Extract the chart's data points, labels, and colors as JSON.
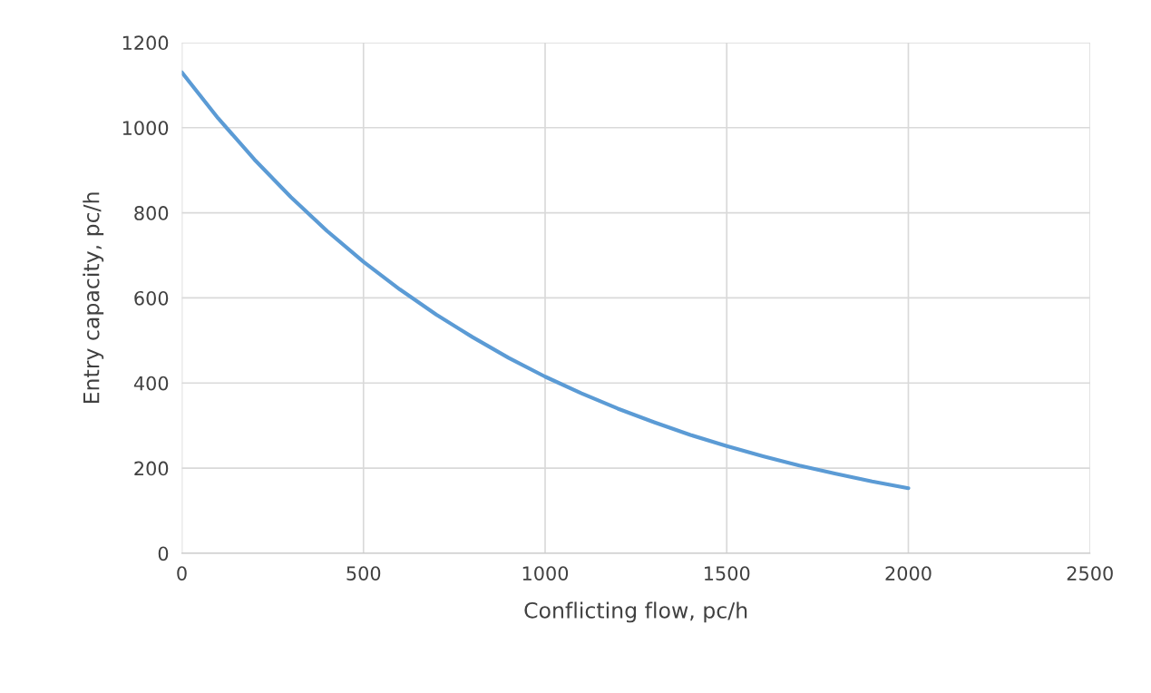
{
  "chart_data": {
    "type": "line",
    "xlabel": "Conflicting flow, pc/h",
    "ylabel": "Entry capacity, pc/h",
    "x": [
      0,
      100,
      200,
      300,
      400,
      500,
      600,
      700,
      800,
      900,
      1000,
      1100,
      1200,
      1300,
      1400,
      1500,
      1600,
      1700,
      1800,
      1900,
      2000
    ],
    "series": [
      {
        "color": "#5b9bd5",
        "values": [
          1130,
          1022,
          925,
          837,
          757,
          685,
          620,
          561,
          508,
          459,
          415,
          376,
          340,
          308,
          278,
          252,
          228,
          206,
          187,
          169,
          153
        ]
      }
    ],
    "xlim": [
      0,
      2500
    ],
    "xticks": [
      0,
      500,
      1000,
      1500,
      2000,
      2500
    ],
    "ylim": [
      0,
      1200
    ],
    "yticks": [
      0,
      200,
      400,
      600,
      800,
      1000,
      1200
    ],
    "grid": true,
    "marker": "none",
    "line_style": "solid"
  }
}
